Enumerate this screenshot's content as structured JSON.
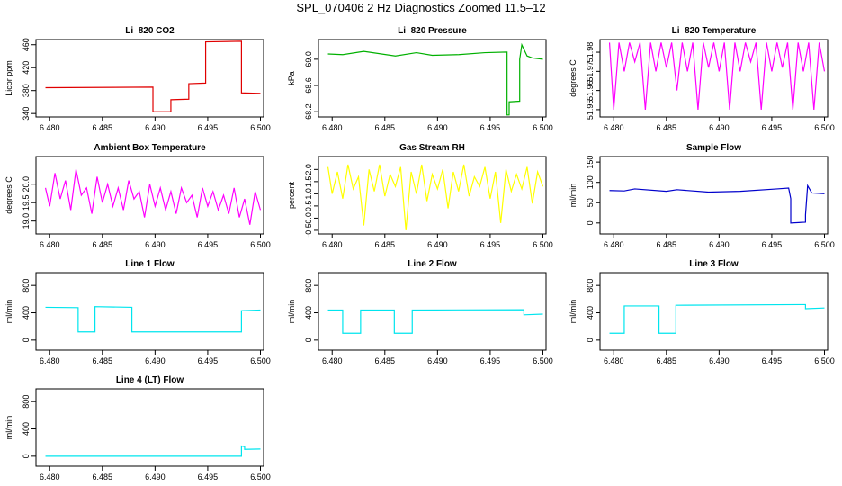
{
  "title": "SPL_070406  2 Hz Diagnostics Zoomed 11.5–12",
  "chart_data": [
    {
      "type": "line",
      "title": "Li–820 CO2",
      "ylabel": "Licor ppm",
      "color": "#e00000",
      "x": [
        6.4796,
        6.4898,
        6.4898,
        6.4915,
        6.4915,
        6.4932,
        6.4932,
        6.4948,
        6.4948,
        6.4982,
        6.4982,
        6.5
      ],
      "values": [
        385,
        386,
        343,
        343,
        364,
        365,
        392,
        393,
        465,
        466,
        376,
        375
      ],
      "xlim": [
        6.4787,
        6.5003
      ],
      "xticks": [
        {
          "value": 6.48,
          "label": "6.480"
        },
        6.485,
        {
          "value": 6.49,
          "label": "6.490"
        },
        6.495,
        {
          "value": 6.5,
          "label": "6.500"
        }
      ],
      "ylim": [
        334,
        469
      ],
      "yticks": [
        340,
        380,
        420,
        460
      ]
    },
    {
      "type": "line",
      "title": "Li–820 Pressure",
      "ylabel": "kPa",
      "color": "#00b000",
      "x": [
        6.4796,
        6.481,
        6.483,
        6.486,
        6.488,
        6.4895,
        6.492,
        6.4945,
        6.4966,
        6.4966,
        6.4968,
        6.4968,
        6.4978,
        6.4978,
        6.498,
        6.4985,
        6.499,
        6.5
      ],
      "values": [
        69.08,
        69.07,
        69.12,
        69.05,
        69.1,
        69.06,
        69.07,
        69.1,
        69.11,
        68.15,
        68.15,
        68.35,
        68.36,
        69.0,
        69.22,
        69.05,
        69.02,
        69.0
      ],
      "xlim": [
        6.4787,
        6.5003
      ],
      "xticks": [
        {
          "value": 6.48,
          "label": "6.480"
        },
        6.485,
        {
          "value": 6.49,
          "label": "6.490"
        },
        6.495,
        {
          "value": 6.5,
          "label": "6.500"
        }
      ],
      "ylim": [
        68.12,
        69.3
      ],
      "yticks": [
        68.2,
        68.6,
        {
          "value": 69,
          "label": "69.0"
        }
      ]
    },
    {
      "type": "line",
      "title": "Li–820 Temperature",
      "ylabel": "degrees C",
      "color": "#ff00ff",
      "x": [
        6.4796,
        6.48,
        6.4805,
        6.481,
        6.4815,
        6.482,
        6.4825,
        6.483,
        6.4835,
        6.484,
        6.4845,
        6.485,
        6.4855,
        6.486,
        6.4865,
        6.487,
        6.4875,
        6.488,
        6.4885,
        6.489,
        6.4895,
        6.49,
        6.4905,
        6.491,
        6.4915,
        6.492,
        6.4925,
        6.493,
        6.4935,
        6.494,
        6.4945,
        6.495,
        6.4955,
        6.496,
        6.4965,
        6.497,
        6.4975,
        6.498,
        6.4985,
        6.499,
        6.4995,
        6.5
      ],
      "values": [
        51.985,
        51.95,
        51.985,
        51.97,
        51.985,
        51.975,
        51.985,
        51.95,
        51.985,
        51.97,
        51.985,
        51.972,
        51.985,
        51.96,
        51.985,
        51.97,
        51.985,
        51.95,
        51.985,
        51.972,
        51.985,
        51.97,
        51.985,
        51.95,
        51.985,
        51.97,
        51.985,
        51.975,
        51.985,
        51.95,
        51.985,
        51.97,
        51.985,
        51.972,
        51.985,
        51.95,
        51.985,
        51.97,
        51.985,
        51.95,
        51.985,
        51.97
      ],
      "xlim": [
        6.4787,
        6.5003
      ],
      "xticks": [
        {
          "value": 6.48,
          "label": "6.480"
        },
        6.485,
        {
          "value": 6.49,
          "label": "6.490"
        },
        6.495,
        {
          "value": 6.5,
          "label": "6.500"
        }
      ],
      "ylim": [
        51.9462,
        51.9866
      ],
      "yticks": [
        51.95,
        51.96,
        51.97,
        51.98
      ]
    },
    {
      "type": "line",
      "title": "Ambient Box Temperature",
      "ylabel": "degrees C",
      "color": "#ff00ff",
      "x": [
        6.4796,
        6.48,
        6.4805,
        6.481,
        6.4815,
        6.482,
        6.4825,
        6.483,
        6.4835,
        6.484,
        6.4845,
        6.485,
        6.4855,
        6.486,
        6.4865,
        6.487,
        6.4875,
        6.488,
        6.4885,
        6.489,
        6.4895,
        6.49,
        6.4905,
        6.491,
        6.4915,
        6.492,
        6.4925,
        6.493,
        6.4935,
        6.494,
        6.4945,
        6.495,
        6.4955,
        6.496,
        6.4965,
        6.497,
        6.4975,
        6.498,
        6.4985,
        6.499,
        6.4995,
        6.5
      ],
      "values": [
        19.9,
        19.4,
        20.3,
        19.6,
        20.1,
        19.3,
        20.4,
        19.7,
        19.9,
        19.2,
        20.2,
        19.5,
        20.0,
        19.4,
        19.9,
        19.3,
        20.1,
        19.6,
        19.8,
        19.1,
        20.0,
        19.4,
        19.9,
        19.3,
        19.8,
        19.2,
        19.9,
        19.5,
        19.7,
        19.1,
        19.9,
        19.4,
        19.8,
        19.3,
        19.7,
        19.2,
        19.9,
        19.1,
        19.6,
        18.9,
        19.8,
        19.3
      ],
      "xlim": [
        6.4787,
        6.5003
      ],
      "xticks": [
        {
          "value": 6.48,
          "label": "6.480"
        },
        6.485,
        {
          "value": 6.49,
          "label": "6.490"
        },
        6.495,
        {
          "value": 6.5,
          "label": "6.500"
        }
      ],
      "ylim": [
        18.65,
        20.75
      ],
      "yticks": [
        {
          "value": 19,
          "label": "19.0"
        },
        19.5,
        {
          "value": 20,
          "label": "20.0"
        }
      ]
    },
    {
      "type": "line",
      "title": "Gas Stream RH",
      "ylabel": "percent",
      "color": "#ffff00",
      "x": [
        6.4796,
        6.48,
        6.4805,
        6.481,
        6.4815,
        6.482,
        6.4825,
        6.483,
        6.4835,
        6.484,
        6.4845,
        6.485,
        6.4855,
        6.486,
        6.4865,
        6.487,
        6.4875,
        6.488,
        6.4885,
        6.489,
        6.4895,
        6.49,
        6.4905,
        6.491,
        6.4915,
        6.492,
        6.4925,
        6.493,
        6.4935,
        6.494,
        6.4945,
        6.495,
        6.4955,
        6.496,
        6.4965,
        6.497,
        6.4975,
        6.498,
        6.4985,
        6.499,
        6.4995,
        6.5
      ],
      "values": [
        2.1,
        1.0,
        1.9,
        0.8,
        2.2,
        1.2,
        1.7,
        -0.3,
        2.0,
        1.1,
        2.2,
        0.9,
        1.8,
        1.3,
        2.1,
        -0.5,
        1.9,
        1.0,
        2.2,
        0.7,
        1.8,
        1.2,
        2.0,
        0.4,
        1.9,
        1.1,
        2.2,
        0.9,
        1.7,
        1.3,
        2.1,
        0.8,
        1.9,
        -0.2,
        2.0,
        1.1,
        1.8,
        1.2,
        2.1,
        0.6,
        1.9,
        1.3
      ],
      "xlim": [
        6.4787,
        6.5003
      ],
      "xticks": [
        {
          "value": 6.48,
          "label": "6.480"
        },
        6.485,
        {
          "value": 6.49,
          "label": "6.490"
        },
        6.495,
        {
          "value": 6.5,
          "label": "6.500"
        }
      ],
      "ylim": [
        -0.65,
        2.53
      ],
      "yticks": [
        -0.5,
        {
          "value": 0,
          "label": "0.0"
        },
        0.5,
        {
          "value": 1,
          "label": "1.0"
        },
        1.5,
        {
          "value": 2,
          "label": "2.0"
        }
      ]
    },
    {
      "type": "line",
      "title": "Sample Flow",
      "ylabel": "ml/min",
      "color": "#0000cc",
      "x": [
        6.4796,
        6.481,
        6.482,
        6.485,
        6.486,
        6.489,
        6.492,
        6.4955,
        6.4966,
        6.4968,
        6.4968,
        6.4982,
        6.4982,
        6.4984,
        6.4988,
        6.5
      ],
      "values": [
        80,
        79,
        84,
        78,
        82,
        76,
        78,
        84,
        86,
        60,
        0,
        2,
        20,
        92,
        74,
        72
      ],
      "xlim": [
        6.4787,
        6.5003
      ],
      "xticks": [
        {
          "value": 6.48,
          "label": "6.480"
        },
        6.485,
        {
          "value": 6.49,
          "label": "6.490"
        },
        6.495,
        {
          "value": 6.5,
          "label": "6.500"
        }
      ],
      "ylim": [
        -27,
        163.6
      ],
      "yticks": [
        0,
        50,
        100,
        150
      ]
    },
    {
      "type": "line",
      "title": "Line 1 Flow",
      "ylabel": "ml/min",
      "color": "#00e5ee",
      "x": [
        6.4796,
        6.4827,
        6.4827,
        6.4843,
        6.4843,
        6.4878,
        6.4878,
        6.4982,
        6.4982,
        6.5
      ],
      "values": [
        480,
        475,
        120,
        120,
        490,
        480,
        120,
        120,
        430,
        440
      ],
      "xlim": [
        6.4787,
        6.5003
      ],
      "xticks": [
        {
          "value": 6.48,
          "label": "6.480"
        },
        6.485,
        {
          "value": 6.49,
          "label": "6.490"
        },
        6.495,
        {
          "value": 6.5,
          "label": "6.500"
        }
      ],
      "ylim": [
        -147,
        987
      ],
      "yticks": [
        0,
        400,
        800
      ]
    },
    {
      "type": "line",
      "title": "Line 2 Flow",
      "ylabel": "ml/min",
      "color": "#00e5ee",
      "x": [
        6.4796,
        6.481,
        6.481,
        6.4827,
        6.4827,
        6.4859,
        6.4859,
        6.4876,
        6.4876,
        6.4982,
        6.4982,
        6.5
      ],
      "values": [
        440,
        440,
        100,
        100,
        440,
        440,
        100,
        100,
        440,
        445,
        370,
        380
      ],
      "xlim": [
        6.4787,
        6.5003
      ],
      "xticks": [
        {
          "value": 6.48,
          "label": "6.480"
        },
        6.485,
        {
          "value": 6.49,
          "label": "6.490"
        },
        6.495,
        {
          "value": 6.5,
          "label": "6.500"
        }
      ],
      "ylim": [
        -147,
        987
      ],
      "yticks": [
        0,
        400,
        800
      ]
    },
    {
      "type": "line",
      "title": "Line 3 Flow",
      "ylabel": "ml/min",
      "color": "#00e5ee",
      "x": [
        6.4796,
        6.481,
        6.481,
        6.4843,
        6.4843,
        6.4859,
        6.4859,
        6.4982,
        6.4982,
        6.5
      ],
      "values": [
        100,
        100,
        500,
        500,
        100,
        100,
        510,
        520,
        460,
        470
      ],
      "xlim": [
        6.4787,
        6.5003
      ],
      "xticks": [
        {
          "value": 6.48,
          "label": "6.480"
        },
        6.485,
        {
          "value": 6.49,
          "label": "6.490"
        },
        6.495,
        {
          "value": 6.5,
          "label": "6.500"
        }
      ],
      "ylim": [
        -147,
        987
      ],
      "yticks": [
        0,
        400,
        800
      ]
    },
    {
      "type": "line",
      "title": "Line 4 (LT) Flow",
      "ylabel": "ml/min",
      "color": "#00e5ee",
      "x": [
        6.4796,
        6.4982,
        6.4982,
        6.4985,
        6.4985,
        6.5
      ],
      "values": [
        0,
        0,
        150,
        140,
        100,
        105
      ],
      "xlim": [
        6.4787,
        6.5003
      ],
      "xticks": [
        {
          "value": 6.48,
          "label": "6.480"
        },
        6.485,
        {
          "value": 6.49,
          "label": "6.490"
        },
        6.495,
        {
          "value": 6.5,
          "label": "6.500"
        }
      ],
      "ylim": [
        -147,
        987
      ],
      "yticks": [
        0,
        400,
        800
      ]
    }
  ]
}
